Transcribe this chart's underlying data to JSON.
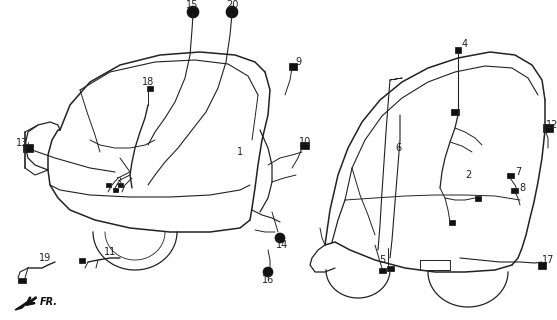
{
  "bg_color": "#ffffff",
  "line_color": "#222222",
  "text_color": "#222222",
  "figsize": [
    5.57,
    3.2
  ],
  "dpi": 100,
  "xlim": [
    0,
    557
  ],
  "ylim": [
    0,
    320
  ]
}
